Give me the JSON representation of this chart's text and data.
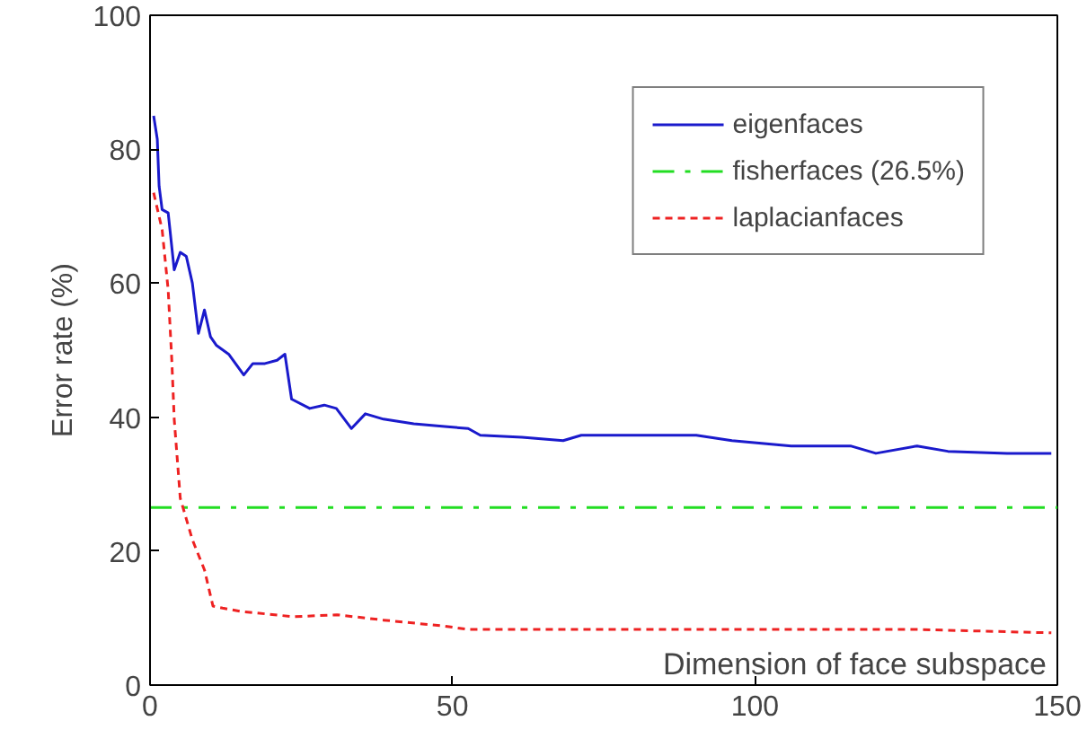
{
  "chart_data": {
    "type": "line",
    "xlabel": "Dimension of face subspace",
    "ylabel": "Error rate (%)",
    "xlim": [
      0,
      150
    ],
    "ylim": [
      0,
      100
    ],
    "xticks": [
      0,
      50,
      100,
      150
    ],
    "yticks": [
      0,
      20,
      40,
      60,
      80,
      100
    ],
    "grid": false,
    "legend": "top right",
    "series": [
      {
        "name": "eigenfaces",
        "color": "#1a1acc",
        "line_style": "solid",
        "x": [
          0.6,
          1.2,
          1.5,
          2,
          3,
          4,
          5,
          6,
          7,
          8,
          9,
          10,
          11,
          13,
          15.5,
          17,
          19,
          21,
          22.3,
          23.4,
          26.4,
          28.8,
          30.8,
          33.3,
          35.6,
          38.6,
          43.6,
          48.7,
          52.6,
          54.6,
          61.5,
          68.3,
          71.3,
          84.6,
          90.3,
          96.2,
          106,
          115.8,
          120,
          126.8,
          131.9,
          141.7,
          149
        ],
        "values": [
          85,
          81.5,
          74.5,
          71,
          70.5,
          62,
          64.6,
          64,
          60,
          52.5,
          56,
          52,
          50.7,
          49.4,
          46.3,
          48,
          48,
          48.5,
          49.4,
          42.7,
          41.3,
          41.8,
          41.3,
          38.3,
          40.5,
          39.7,
          39,
          38.6,
          38.3,
          37.3,
          37,
          36.5,
          37.3,
          37.3,
          37.3,
          36.5,
          35.7,
          35.7,
          34.6,
          35.7,
          34.9,
          34.6,
          34.6
        ]
      },
      {
        "name": "fisherfaces (26.5%)",
        "color": "#22dd22",
        "line_style": "dashdot",
        "x": [
          0,
          150
        ],
        "values": [
          26.5,
          26.5
        ]
      },
      {
        "name": "laplacianfaces",
        "color": "#ee2222",
        "line_style": "dashed",
        "x": [
          0.6,
          2,
          3,
          3.6,
          4,
          5,
          7,
          9,
          10.4,
          12,
          15,
          23.8,
          30.9,
          38.6,
          48.7,
          52.6,
          102,
          126.8,
          149
        ],
        "values": [
          73.5,
          68,
          59,
          48.5,
          39.7,
          27.9,
          21.7,
          17.2,
          11.8,
          11.5,
          11,
          10.2,
          10.5,
          9.7,
          8.8,
          8.3,
          8.3,
          8.3,
          7.8
        ]
      }
    ]
  }
}
